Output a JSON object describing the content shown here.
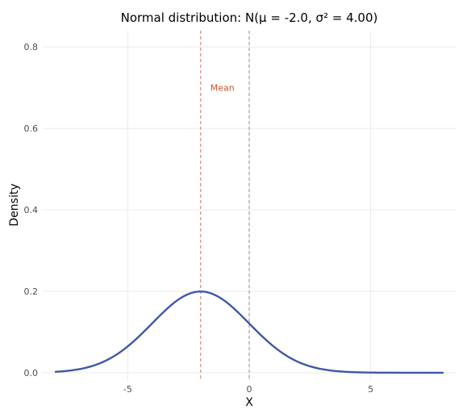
{
  "chart_data": {
    "type": "line",
    "title": "Normal distribution: N(μ = -2.0, σ² = 4.00)",
    "xlabel": "X",
    "ylabel": "Density",
    "xlim": [
      -8.5,
      8.5
    ],
    "ylim": [
      -0.02,
      0.84
    ],
    "x_ticks": [
      -5,
      0,
      5
    ],
    "x_tick_labels": [
      "-5",
      "0",
      "5"
    ],
    "y_ticks": [
      0.0,
      0.2,
      0.4,
      0.6,
      0.8
    ],
    "y_tick_labels": [
      "0.0",
      "0.2",
      "0.4",
      "0.6",
      "0.8"
    ],
    "grid": true,
    "series": [
      {
        "name": "density",
        "distribution": "normal",
        "mu": -2.0,
        "sigma": 2.0,
        "x_range": [
          -8,
          8
        ],
        "color": "#3f57a8"
      }
    ],
    "vlines": [
      {
        "name": "mean",
        "x": -2.0,
        "color": "#d88c6a"
      },
      {
        "name": "zero",
        "x": 0.0,
        "color": "#b4998f"
      }
    ],
    "annotations": [
      {
        "text": "Mean",
        "x": -1.6,
        "y": 0.7,
        "color": "#c8532b"
      }
    ]
  }
}
